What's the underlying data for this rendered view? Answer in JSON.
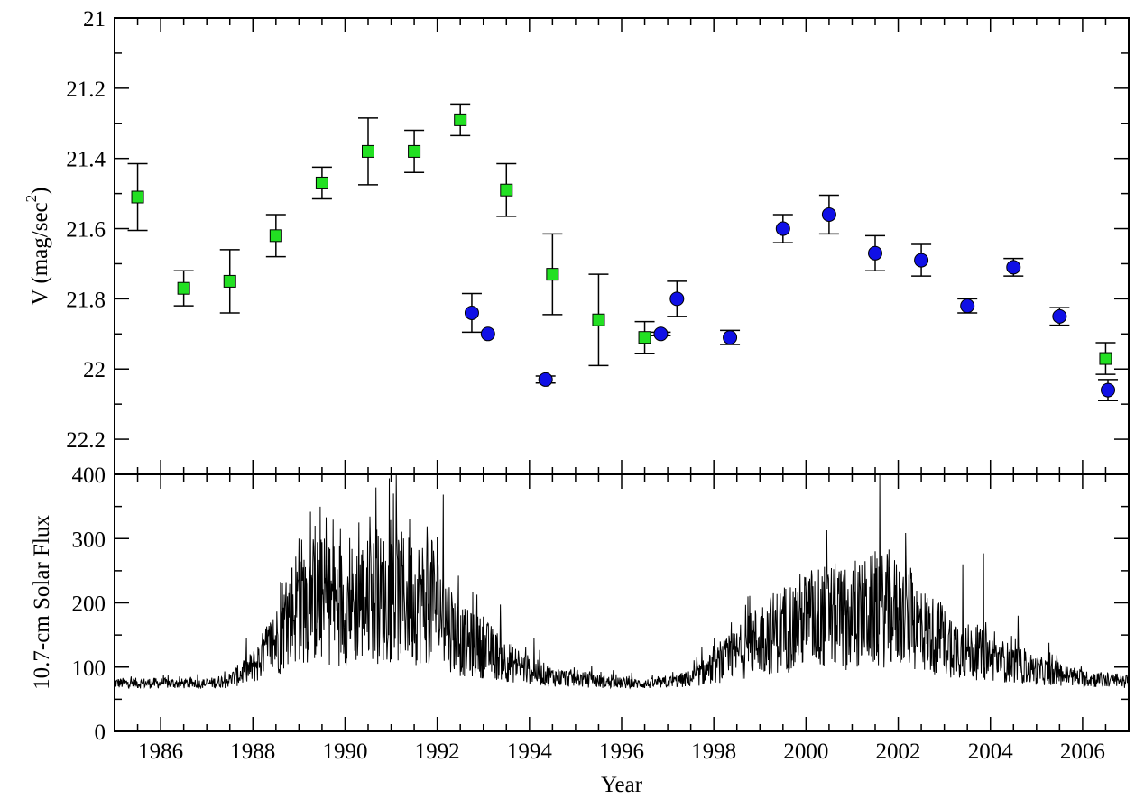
{
  "colors": {
    "series_squares": "#22e022",
    "series_circles": "#1010e6",
    "line": "#000000"
  },
  "chart_data": [
    {
      "type": "scatter",
      "title": "",
      "xlabel": "",
      "ylabel": "V (mag/sec²)",
      "ylabel_main": "V (mag/sec",
      "ylabel_sup": "2",
      "ylabel_close": ")",
      "xlim": [
        1985,
        2007
      ],
      "ylim": [
        22.3,
        21.0
      ],
      "y_inverted": true,
      "yticks": [
        "21",
        "21.2",
        "21.4",
        "21.6",
        "21.8",
        "22",
        "22.2"
      ],
      "ytick_values": [
        21.0,
        21.2,
        21.4,
        21.6,
        21.8,
        22.0,
        22.2
      ],
      "grid": false,
      "series": [
        {
          "marker": "square",
          "color": "#22e022",
          "points": [
            {
              "x": 1985.5,
              "y": 21.51,
              "err": 0.095
            },
            {
              "x": 1986.5,
              "y": 21.77,
              "err": 0.05
            },
            {
              "x": 1987.5,
              "y": 21.75,
              "err": 0.09
            },
            {
              "x": 1988.5,
              "y": 21.62,
              "err": 0.06
            },
            {
              "x": 1989.5,
              "y": 21.47,
              "err": 0.045
            },
            {
              "x": 1990.5,
              "y": 21.38,
              "err": 0.095
            },
            {
              "x": 1991.5,
              "y": 21.38,
              "err": 0.06
            },
            {
              "x": 1992.5,
              "y": 21.29,
              "err": 0.045
            },
            {
              "x": 1993.5,
              "y": 21.49,
              "err": 0.075
            },
            {
              "x": 1994.5,
              "y": 21.73,
              "err": 0.115
            },
            {
              "x": 1995.5,
              "y": 21.86,
              "err": 0.13
            },
            {
              "x": 1996.5,
              "y": 21.91,
              "err": 0.045
            },
            {
              "x": 2006.5,
              "y": 21.97,
              "err": 0.045
            }
          ]
        },
        {
          "marker": "circle",
          "color": "#1010e6",
          "points": [
            {
              "x": 1992.75,
              "y": 21.84,
              "err": 0.055
            },
            {
              "x": 1993.1,
              "y": 21.9,
              "err": 0.0
            },
            {
              "x": 1994.35,
              "y": 22.03,
              "err": 0.01
            },
            {
              "x": 1996.85,
              "y": 21.9,
              "err": 0.005
            },
            {
              "x": 1997.2,
              "y": 21.8,
              "err": 0.05
            },
            {
              "x": 1998.35,
              "y": 21.91,
              "err": 0.02
            },
            {
              "x": 1999.5,
              "y": 21.6,
              "err": 0.04
            },
            {
              "x": 2000.5,
              "y": 21.56,
              "err": 0.055
            },
            {
              "x": 2001.5,
              "y": 21.67,
              "err": 0.05
            },
            {
              "x": 2002.5,
              "y": 21.69,
              "err": 0.045
            },
            {
              "x": 2003.5,
              "y": 21.82,
              "err": 0.02
            },
            {
              "x": 2004.5,
              "y": 21.71,
              "err": 0.025
            },
            {
              "x": 2005.5,
              "y": 21.85,
              "err": 0.025
            },
            {
              "x": 2006.55,
              "y": 22.06,
              "err": 0.03
            }
          ]
        }
      ]
    },
    {
      "type": "line",
      "title": "",
      "xlabel": "Year",
      "ylabel": "10.7-cm Solar Flux",
      "xlim": [
        1985,
        2007
      ],
      "ylim": [
        0,
        400
      ],
      "xticks": [
        "1986",
        "1988",
        "1990",
        "1992",
        "1994",
        "1996",
        "1998",
        "2000",
        "2002",
        "2004",
        "2006"
      ],
      "xtick_values": [
        1986,
        1988,
        1990,
        1992,
        1994,
        1996,
        1998,
        2000,
        2002,
        2004,
        2006
      ],
      "yticks": [
        "0",
        "100",
        "200",
        "300",
        "400"
      ],
      "ytick_values": [
        0,
        100,
        200,
        300,
        400
      ],
      "grid": false,
      "envelope": {
        "x": [
          1985.0,
          1986.0,
          1987.0,
          1987.5,
          1988.0,
          1988.5,
          1989.0,
          1989.5,
          1990.0,
          1990.5,
          1991.0,
          1991.5,
          1992.0,
          1992.5,
          1993.0,
          1993.5,
          1994.0,
          1994.5,
          1995.0,
          1995.5,
          1996.0,
          1996.5,
          1997.0,
          1997.5,
          1998.0,
          1998.5,
          1999.0,
          1999.5,
          2000.0,
          2000.5,
          2001.0,
          2001.5,
          2002.0,
          2002.5,
          2003.0,
          2003.5,
          2004.0,
          2004.5,
          2005.0,
          2005.5,
          2006.0,
          2006.5,
          2007.0
        ],
        "y": [
          75,
          75,
          74,
          80,
          100,
          140,
          205,
          205,
          195,
          205,
          210,
          205,
          200,
          140,
          130,
          110,
          95,
          85,
          82,
          78,
          75,
          74,
          76,
          82,
          100,
          120,
          145,
          160,
          175,
          180,
          175,
          190,
          185,
          160,
          140,
          125,
          115,
          105,
          95,
          90,
          82,
          80,
          78
        ]
      },
      "spikes": [
        {
          "x": 1989.0,
          "y": 300
        },
        {
          "x": 1989.35,
          "y": 320
        },
        {
          "x": 1989.9,
          "y": 315
        },
        {
          "x": 1990.3,
          "y": 325
        },
        {
          "x": 1991.05,
          "y": 370
        },
        {
          "x": 1991.4,
          "y": 330
        },
        {
          "x": 1992.0,
          "y": 302
        },
        {
          "x": 1994.1,
          "y": 145
        },
        {
          "x": 2000.45,
          "y": 313
        },
        {
          "x": 2001.8,
          "y": 283
        },
        {
          "x": 2003.4,
          "y": 260
        },
        {
          "x": 2003.85,
          "y": 277
        },
        {
          "x": 2004.6,
          "y": 180
        }
      ]
    }
  ]
}
